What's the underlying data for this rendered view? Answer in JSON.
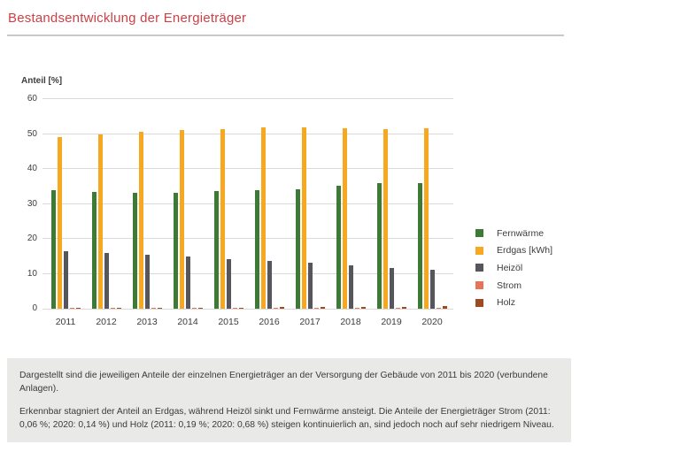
{
  "header": {
    "title": "Bestandsentwicklung der Energieträger"
  },
  "caption": {
    "p1": "Dargestellt sind die jeweiligen Anteile der einzelnen Energieträger an der Versorgung der Gebäude von 2011 bis 2020 (verbundene Anlagen).",
    "p2": "Erkennbar stagniert der Anteil an Erdgas, während Heizöl sinkt und Fernwärme ansteigt. Die Anteile der Energieträger Strom (2011: 0,06 %; 2020: 0,14 %) und Holz (2011: 0,19 %; 2020: 0,68 %) steigen kontinuierlich an, sind jedoch noch auf sehr niedrigem Niveau."
  },
  "colors": {
    "title_red": "#CE4046",
    "grid_gray": "#d9d9d9",
    "caption_bg": "#e9e9e8",
    "text_dark": "#3c3c3c"
  },
  "chart_data": {
    "type": "bar",
    "title": "Bestandsentwicklung der Energieträger",
    "xlabel": "",
    "ylabel": "Anteil [%]",
    "ylim": [
      0,
      60
    ],
    "yticks": [
      0,
      10,
      20,
      30,
      40,
      50,
      60
    ],
    "grid": true,
    "legend_position": "right",
    "categories": [
      "2011",
      "2012",
      "2013",
      "2014",
      "2015",
      "2016",
      "2017",
      "2018",
      "2019",
      "2020"
    ],
    "series": [
      {
        "name": "Fernwärme",
        "color": "#3C7A35",
        "values": [
          34.0,
          33.5,
          33.2,
          33.1,
          33.6,
          33.8,
          34.1,
          35.2,
          35.9,
          36.0
        ]
      },
      {
        "name": "Erdgas [kWh]",
        "color": "#F6A821",
        "values": [
          49.2,
          49.9,
          50.6,
          51.1,
          51.3,
          51.8,
          52.0,
          51.6,
          51.4,
          51.7
        ]
      },
      {
        "name": "Heizöl",
        "color": "#56565C",
        "values": [
          16.4,
          16.0,
          15.5,
          14.9,
          14.3,
          13.6,
          13.2,
          12.4,
          11.7,
          11.2
        ]
      },
      {
        "name": "Strom",
        "color": "#E97356",
        "values": [
          0.06,
          0.07,
          0.08,
          0.09,
          0.1,
          0.11,
          0.12,
          0.12,
          0.13,
          0.14
        ]
      },
      {
        "name": "Holz",
        "color": "#9E4B22",
        "values": [
          0.19,
          0.22,
          0.26,
          0.3,
          0.35,
          0.4,
          0.45,
          0.52,
          0.6,
          0.68
        ]
      }
    ]
  }
}
